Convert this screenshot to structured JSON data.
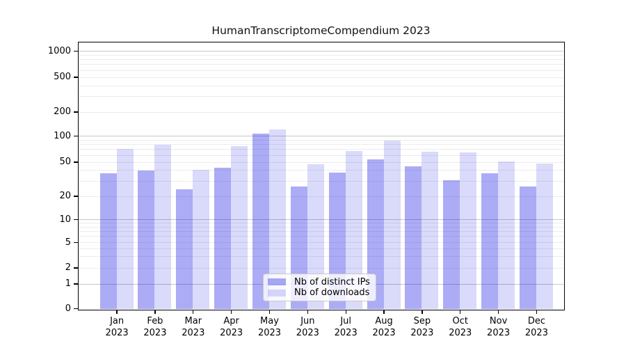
{
  "title": "HumanTranscriptomeCompendium 2023",
  "chart_data": {
    "type": "bar",
    "title": "HumanTranscriptomeCompendium 2023",
    "categories": [
      "Jan",
      "Feb",
      "Mar",
      "Apr",
      "May",
      "Jun",
      "Jul",
      "Aug",
      "Sep",
      "Oct",
      "Nov",
      "Dec"
    ],
    "category_year": "2023",
    "series": [
      {
        "name": "Nb of distinct IPs",
        "color": "rgba(10,10,230,0.34)",
        "values": [
          37,
          40,
          24,
          43,
          107,
          26,
          38,
          54,
          45,
          31,
          37,
          26
        ]
      },
      {
        "name": "Nb of downloads",
        "color": "rgba(10,10,230,0.15)",
        "values": [
          71,
          79,
          41,
          77,
          120,
          47,
          67,
          88,
          66,
          65,
          51,
          48
        ]
      }
    ],
    "yscale": "symlog",
    "y_ticks": [
      0,
      1,
      2,
      5,
      10,
      20,
      50,
      100,
      200,
      500,
      1000
    ],
    "ylim": [
      0,
      1300
    ],
    "xlabel": "",
    "ylabel": "",
    "grid": "on",
    "legend_position": "lower center"
  },
  "colors": {
    "background": "#ffffff",
    "bar_ips": "rgba(10,10,230,0.34)",
    "bar_downloads": "rgba(10,10,230,0.15)",
    "grid_major": "#c6c6c6",
    "grid_minor": "#ececec",
    "axis": "#000000",
    "legend_border": "#c9c9c9"
  }
}
